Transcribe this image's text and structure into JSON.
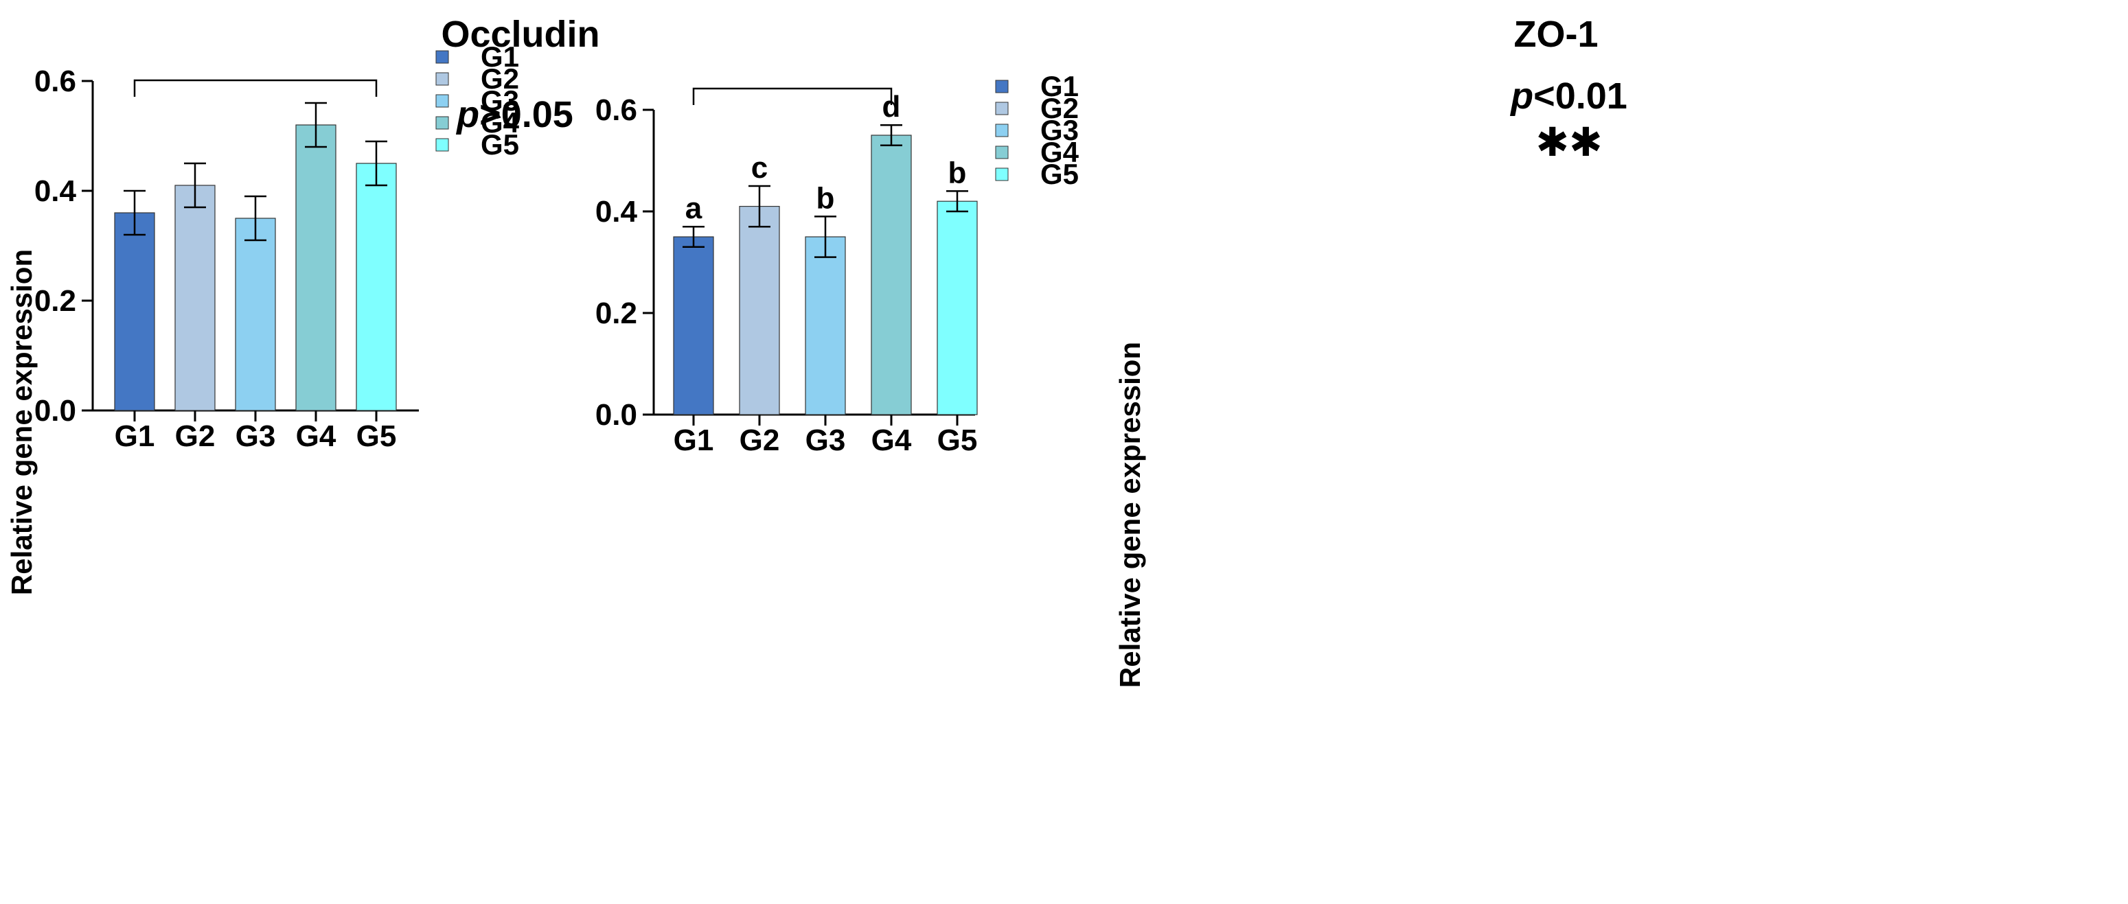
{
  "chart_data": [
    {
      "type": "bar",
      "title": "Occludin",
      "xlabel": "",
      "ylabel": "Relative gene expression",
      "ylim": [
        0,
        0.6
      ],
      "yticks": [
        "0.0",
        "0.2",
        "0.4",
        "0.6"
      ],
      "categories": [
        "G1",
        "G2",
        "G3",
        "G4",
        "G5"
      ],
      "values": [
        0.36,
        0.41,
        0.35,
        0.52,
        0.45
      ],
      "errors": [
        0.04,
        0.04,
        0.04,
        0.04,
        0.04
      ],
      "colors": [
        "#4477C4",
        "#AFC8E2",
        "#8DD0F1",
        "#86CDD4",
        "#7FFFFF"
      ],
      "bar_labels": [
        "",
        "",
        "",
        "",
        ""
      ],
      "significance": {
        "p_italic": "p",
        "p_rest": ">0.05",
        "stars": "",
        "from": "G1",
        "to": "G5"
      },
      "legend": {
        "placement": "right",
        "entries": [
          "G1",
          "G2",
          "G3",
          "G4",
          "G5"
        ]
      }
    },
    {
      "type": "bar",
      "title": "ZO-1",
      "xlabel": "",
      "ylabel": "Relative gene expression",
      "ylim": [
        0,
        0.6
      ],
      "yticks": [
        "0.0",
        "0.2",
        "0.4",
        "0.6"
      ],
      "categories": [
        "G1",
        "G2",
        "G3",
        "G4",
        "G5"
      ],
      "values": [
        0.35,
        0.41,
        0.35,
        0.55,
        0.42
      ],
      "errors": [
        0.02,
        0.04,
        0.04,
        0.02,
        0.02
      ],
      "colors": [
        "#4477C4",
        "#AFC8E2",
        "#8DD0F1",
        "#86CDD4",
        "#7FFFFF"
      ],
      "bar_labels": [
        "a",
        "c",
        "b",
        "d",
        "b"
      ],
      "significance": {
        "p_italic": "p",
        "p_rest": "<0.01",
        "stars": "✱✱",
        "from": "G1",
        "to": "G4"
      },
      "legend": {
        "placement": "right",
        "entries": [
          "G1",
          "G2",
          "G3",
          "G4",
          "G5"
        ]
      }
    }
  ]
}
